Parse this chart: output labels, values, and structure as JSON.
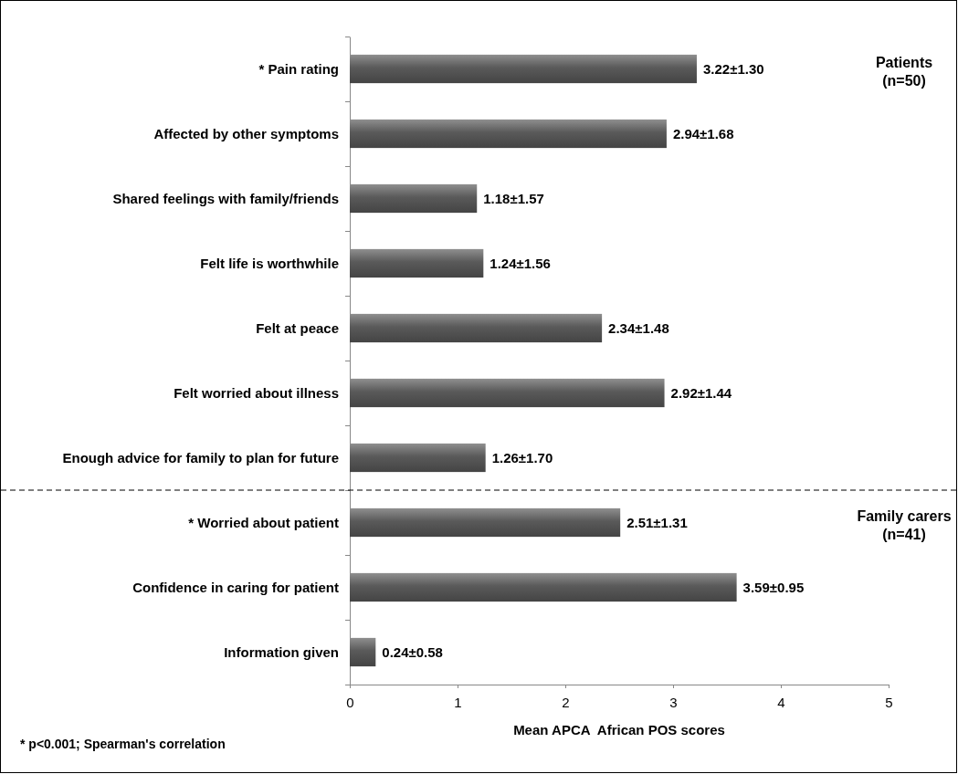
{
  "chart_data": {
    "type": "bar",
    "orientation": "horizontal",
    "categories": [
      "* Pain rating",
      "Affected by other symptoms",
      "Shared feelings with family/friends",
      "Felt life is worthwhile",
      "Felt at peace",
      "Felt worried about illness",
      "Enough advice for family to plan for future",
      "* Worried about patient",
      "Confidence in caring for patient",
      "Information given"
    ],
    "values": [
      3.22,
      2.94,
      1.18,
      1.24,
      2.34,
      2.92,
      1.26,
      2.51,
      3.59,
      0.24
    ],
    "value_labels": [
      "3.22±1.30",
      "2.94±1.68",
      "1.18±1.57",
      "1.24±1.56",
      "2.34±1.48",
      "2.92±1.44",
      "1.26±1.70",
      "2.51±1.31",
      "3.59±0.95",
      "0.24±0.58"
    ],
    "color": "#5a5a5a",
    "xlim": [
      0,
      5
    ],
    "xticks": [
      0,
      1,
      2,
      3,
      4,
      5
    ],
    "xlabel": "Mean APCA  African POS scores",
    "grid": false,
    "annotations": [
      "Patients (n=50)",
      "Family carers (n=41)",
      "* p<0.001; Spearman's correlation"
    ]
  }
}
